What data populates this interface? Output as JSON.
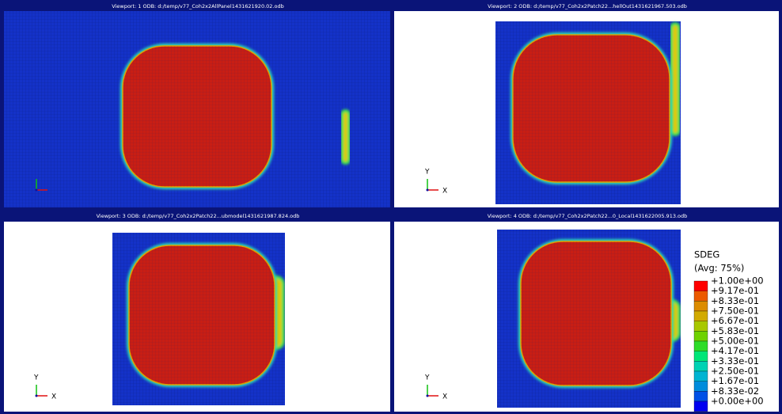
{
  "viewports": [
    {
      "title": "Viewport: 1    ODB: d:/temp/v77_Coh2x2AllPanel1431621920.02.odb"
    },
    {
      "title": "Viewport: 2    ODB: d:/temp/v77_Coh2x2Patch22...hellOut1431621967.503.odb",
      "triad": {
        "y": "Y",
        "x": "X"
      }
    },
    {
      "title": "Viewport: 3    ODB: d:/temp/v77_Coh2x2Patch22...ubmodel1431621987.824.odb",
      "triad": {
        "y": "Y",
        "x": "X"
      }
    },
    {
      "title": "Viewport: 4    ODB: d:/temp/v77_Coh2x2Patch22...0_Local1431622005.913.odb",
      "triad": {
        "y": "Y",
        "x": "X"
      }
    }
  ],
  "legend": {
    "title": "SDEG",
    "subtitle": "(Avg: 75%)",
    "labels": [
      "+1.00e+00",
      "+9.17e-01",
      "+8.33e-01",
      "+7.50e-01",
      "+6.67e-01",
      "+5.83e-01",
      "+5.00e-01",
      "+4.17e-01",
      "+3.33e-01",
      "+2.50e-01",
      "+1.67e-01",
      "+8.33e-02",
      "+0.00e+00"
    ],
    "colors": [
      "#ff0000",
      "#ec5a00",
      "#dc8c00",
      "#d2aa00",
      "#a8c800",
      "#6ed200",
      "#2edc28",
      "#00e678",
      "#00d2b4",
      "#00b4d2",
      "#008cdc",
      "#0050e6",
      "#0000f0"
    ]
  }
}
